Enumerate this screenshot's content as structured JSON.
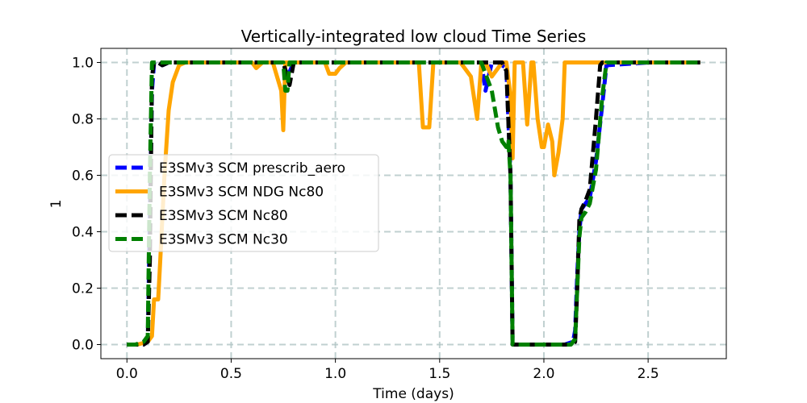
{
  "chart_data": {
    "type": "line",
    "title": "Vertically-integrated low cloud Time Series",
    "xlabel": "Time (days)",
    "ylabel": "1",
    "xlim": [
      -0.125,
      2.875
    ],
    "ylim": [
      -0.05,
      1.05
    ],
    "xticks": [
      0.0,
      0.5,
      1.0,
      1.5,
      2.0,
      2.5
    ],
    "xtick_labels": [
      "0.0",
      "0.5",
      "1.0",
      "1.5",
      "2.0",
      "2.5"
    ],
    "yticks": [
      0.0,
      0.2,
      0.4,
      0.6,
      0.8,
      1.0
    ],
    "ytick_labels": [
      "0.0",
      "0.2",
      "0.4",
      "0.6",
      "0.8",
      "1.0"
    ],
    "grid": true,
    "legend_position": "center-left",
    "series": [
      {
        "name": "E3SMv3 SCM prescrib_aero",
        "color": "#0000ff",
        "style": "dashed",
        "x": [
          0.0,
          0.04,
          0.08,
          0.1,
          0.12,
          0.13,
          0.15,
          0.17,
          0.2,
          0.25,
          0.5,
          0.75,
          0.77,
          0.8,
          1.0,
          1.5,
          1.7,
          1.72,
          1.75,
          1.78,
          1.82,
          1.84,
          1.85,
          1.86,
          1.9,
          2.0,
          2.1,
          2.14,
          2.15,
          2.16,
          2.17,
          2.18,
          2.2,
          2.22,
          2.25,
          2.28,
          2.3,
          2.5,
          2.75
        ],
        "y": [
          0.0,
          0.0,
          0.0,
          0.01,
          0.9,
          1.0,
          1.0,
          0.99,
          1.0,
          1.0,
          1.0,
          1.0,
          0.95,
          1.0,
          1.0,
          1.0,
          1.0,
          0.9,
          1.0,
          1.0,
          0.98,
          0.6,
          0.0,
          0.0,
          0.0,
          0.0,
          0.0,
          0.01,
          0.05,
          0.25,
          0.4,
          0.48,
          0.5,
          0.52,
          0.65,
          0.85,
          0.99,
          1.0,
          1.0
        ]
      },
      {
        "name": "E3SMv3 SCM NDG Nc80",
        "color": "#ffa500",
        "style": "solid",
        "x": [
          0.0,
          0.05,
          0.1,
          0.12,
          0.13,
          0.15,
          0.16,
          0.18,
          0.2,
          0.22,
          0.25,
          0.28,
          0.3,
          0.5,
          0.6,
          0.62,
          0.65,
          0.7,
          0.74,
          0.75,
          0.76,
          0.78,
          0.95,
          0.97,
          1.0,
          1.02,
          1.05,
          1.4,
          1.42,
          1.44,
          1.45,
          1.47,
          1.48,
          1.5,
          1.6,
          1.65,
          1.68,
          1.7,
          1.72,
          1.75,
          1.8,
          1.82,
          1.84,
          1.85,
          1.86,
          1.88,
          1.9,
          1.92,
          1.94,
          1.95,
          1.97,
          1.99,
          2.0,
          2.02,
          2.04,
          2.05,
          2.07,
          2.09,
          2.1,
          2.12,
          2.2,
          2.4,
          2.6,
          2.75
        ],
        "y": [
          0.0,
          0.0,
          0.01,
          0.03,
          0.16,
          0.16,
          0.3,
          0.6,
          0.83,
          0.93,
          0.99,
          1.0,
          1.0,
          1.0,
          1.0,
          0.98,
          1.0,
          1.0,
          0.9,
          0.76,
          1.0,
          1.0,
          1.0,
          0.96,
          0.96,
          0.98,
          1.0,
          1.0,
          0.77,
          0.77,
          0.77,
          1.0,
          1.0,
          1.0,
          1.0,
          0.95,
          0.8,
          1.0,
          1.0,
          0.95,
          1.0,
          1.0,
          0.88,
          0.66,
          1.0,
          1.0,
          1.0,
          0.78,
          1.0,
          1.0,
          0.8,
          0.7,
          0.7,
          0.78,
          0.72,
          0.6,
          0.68,
          0.8,
          1.0,
          1.0,
          1.0,
          1.0,
          1.0,
          1.0
        ]
      },
      {
        "name": "E3SMv3 SCM Nc80",
        "color": "#000000",
        "style": "dashed",
        "x": [
          0.0,
          0.04,
          0.08,
          0.1,
          0.11,
          0.12,
          0.13,
          0.15,
          0.17,
          0.2,
          0.25,
          0.5,
          0.75,
          0.78,
          0.8,
          0.82,
          1.0,
          1.5,
          1.7,
          1.75,
          1.8,
          1.82,
          1.84,
          1.85,
          1.86,
          1.9,
          2.0,
          2.1,
          2.14,
          2.15,
          2.16,
          2.17,
          2.18,
          2.2,
          2.22,
          2.25,
          2.27,
          2.28,
          2.3,
          2.5,
          2.75
        ],
        "y": [
          0.0,
          0.0,
          0.0,
          0.01,
          0.3,
          0.95,
          1.0,
          1.0,
          0.99,
          1.0,
          1.0,
          1.0,
          1.0,
          0.92,
          1.0,
          1.0,
          1.0,
          1.0,
          1.0,
          1.0,
          1.0,
          0.97,
          0.6,
          0.0,
          0.0,
          0.0,
          0.0,
          0.0,
          0.0,
          0.01,
          0.2,
          0.44,
          0.48,
          0.51,
          0.55,
          0.8,
          0.99,
          1.0,
          1.0,
          1.0,
          1.0
        ]
      },
      {
        "name": "E3SMv3 SCM Nc30",
        "color": "#008000",
        "style": "dashed",
        "x": [
          0.0,
          0.04,
          0.08,
          0.1,
          0.11,
          0.12,
          0.13,
          0.15,
          0.2,
          0.25,
          0.5,
          0.75,
          0.76,
          0.77,
          0.78,
          0.8,
          1.0,
          1.5,
          1.7,
          1.72,
          1.75,
          1.78,
          1.8,
          1.82,
          1.83,
          1.84,
          1.85,
          1.87,
          1.9,
          2.0,
          2.1,
          2.13,
          2.14,
          2.15,
          2.16,
          2.17,
          2.18,
          2.2,
          2.22,
          2.25,
          2.28,
          2.3,
          2.5,
          2.75
        ],
        "y": [
          0.0,
          0.0,
          0.01,
          0.03,
          0.6,
          1.0,
          1.0,
          1.0,
          1.0,
          1.0,
          1.0,
          1.0,
          0.9,
          0.9,
          1.0,
          1.0,
          1.0,
          1.0,
          1.0,
          0.96,
          0.9,
          0.77,
          0.72,
          0.7,
          0.72,
          0.6,
          0.0,
          0.0,
          0.0,
          0.0,
          0.0,
          0.0,
          0.01,
          0.02,
          0.2,
          0.38,
          0.45,
          0.47,
          0.5,
          0.62,
          0.88,
          1.0,
          1.0,
          1.0
        ]
      }
    ]
  }
}
